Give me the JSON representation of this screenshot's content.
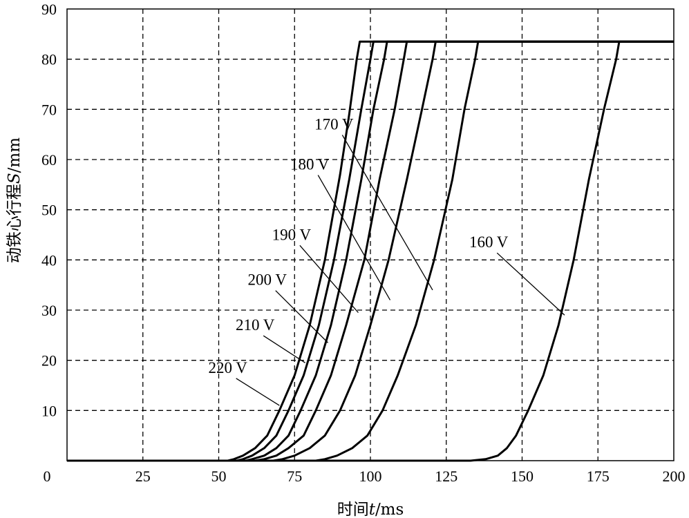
{
  "chart_data": {
    "type": "line",
    "title": "",
    "xlabel_parts": {
      "pre": "时间",
      "var": "t",
      "post": "/ms"
    },
    "ylabel_parts": {
      "pre": "动铁心行程",
      "var": "S",
      "post": "/mm"
    },
    "xlim": [
      0,
      200
    ],
    "ylim": [
      0,
      90
    ],
    "x_ticks": [
      0,
      25,
      50,
      75,
      100,
      125,
      150,
      175,
      200
    ],
    "y_ticks": [
      10,
      20,
      30,
      40,
      50,
      60,
      70,
      80,
      90
    ],
    "grid": true,
    "series": [
      {
        "name": "220 V",
        "points": [
          [
            0,
            0
          ],
          [
            53,
            0
          ],
          [
            55,
            0.3
          ],
          [
            58,
            1
          ],
          [
            62,
            2.5
          ],
          [
            66,
            5
          ],
          [
            70,
            10
          ],
          [
            75,
            17
          ],
          [
            80,
            27
          ],
          [
            85,
            40
          ],
          [
            90,
            57
          ],
          [
            93,
            69
          ],
          [
            95.5,
            80
          ],
          [
            96.5,
            83.5
          ],
          [
            200,
            83.5
          ]
        ]
      },
      {
        "name": "210 V",
        "points": [
          [
            0,
            0
          ],
          [
            56,
            0
          ],
          [
            58,
            0.3
          ],
          [
            61,
            1
          ],
          [
            65,
            2.5
          ],
          [
            69,
            5
          ],
          [
            73,
            10
          ],
          [
            78,
            17
          ],
          [
            83,
            27
          ],
          [
            88,
            40
          ],
          [
            93,
            56
          ],
          [
            97,
            70
          ],
          [
            100,
            80
          ],
          [
            101,
            83.5
          ],
          [
            200,
            83.5
          ]
        ]
      },
      {
        "name": "200 V",
        "points": [
          [
            0,
            0
          ],
          [
            59,
            0
          ],
          [
            61,
            0.3
          ],
          [
            65,
            1
          ],
          [
            69,
            2.5
          ],
          [
            73,
            5
          ],
          [
            77,
            10
          ],
          [
            82,
            17
          ],
          [
            87,
            27
          ],
          [
            92,
            40
          ],
          [
            97,
            56
          ],
          [
            101,
            70
          ],
          [
            104.5,
            80
          ],
          [
            105.5,
            83.5
          ],
          [
            200,
            83.5
          ]
        ]
      },
      {
        "name": "190 V",
        "points": [
          [
            0,
            0
          ],
          [
            62,
            0
          ],
          [
            65,
            0.3
          ],
          [
            69,
            1
          ],
          [
            73,
            2.5
          ],
          [
            78,
            5
          ],
          [
            82,
            10
          ],
          [
            87,
            17
          ],
          [
            92,
            27
          ],
          [
            98,
            40
          ],
          [
            103,
            56
          ],
          [
            108,
            70
          ],
          [
            111,
            80
          ],
          [
            112,
            83.5
          ],
          [
            200,
            83.5
          ]
        ]
      },
      {
        "name": "180 V",
        "points": [
          [
            0,
            0
          ],
          [
            68,
            0
          ],
          [
            71,
            0.3
          ],
          [
            75,
            1
          ],
          [
            80,
            2.5
          ],
          [
            85,
            5
          ],
          [
            90,
            10
          ],
          [
            95,
            17
          ],
          [
            100,
            27
          ],
          [
            106,
            40
          ],
          [
            112,
            56
          ],
          [
            117,
            70
          ],
          [
            120.5,
            80
          ],
          [
            121.5,
            83.5
          ],
          [
            200,
            83.5
          ]
        ]
      },
      {
        "name": "170 V",
        "points": [
          [
            0,
            0
          ],
          [
            82,
            0
          ],
          [
            85,
            0.3
          ],
          [
            89,
            1
          ],
          [
            94,
            2.5
          ],
          [
            99,
            5
          ],
          [
            104,
            10
          ],
          [
            109,
            17
          ],
          [
            115,
            27
          ],
          [
            121,
            40
          ],
          [
            127,
            56
          ],
          [
            131,
            70
          ],
          [
            134.5,
            80
          ],
          [
            135.5,
            83.5
          ],
          [
            200,
            83.5
          ]
        ]
      },
      {
        "name": "160 V",
        "points": [
          [
            0,
            0
          ],
          [
            133,
            0
          ],
          [
            138,
            0.3
          ],
          [
            142,
            1
          ],
          [
            145,
            2.5
          ],
          [
            148,
            5
          ],
          [
            152,
            10
          ],
          [
            157,
            17
          ],
          [
            162,
            27
          ],
          [
            167,
            40
          ],
          [
            172,
            56
          ],
          [
            177,
            70
          ],
          [
            181,
            80
          ],
          [
            182,
            83.5
          ],
          [
            200,
            83.5
          ]
        ]
      }
    ],
    "labels": [
      {
        "text": "220 V",
        "x": 53,
        "y": 17.5,
        "tx": 70,
        "ty": 11
      },
      {
        "text": "210 V",
        "x": 62,
        "y": 26,
        "tx": 78.5,
        "ty": 19.5
      },
      {
        "text": "200 V",
        "x": 66,
        "y": 35,
        "tx": 86,
        "ty": 23.5
      },
      {
        "text": "190 V",
        "x": 74,
        "y": 44,
        "tx": 96,
        "ty": 29.5
      },
      {
        "text": "180 V",
        "x": 80,
        "y": 58,
        "tx": 106.5,
        "ty": 32
      },
      {
        "text": "170 V",
        "x": 88,
        "y": 66,
        "tx": 120.5,
        "ty": 34
      },
      {
        "text": "160 V",
        "x": 139,
        "y": 42.5,
        "tx": 164,
        "ty": 29
      }
    ]
  }
}
